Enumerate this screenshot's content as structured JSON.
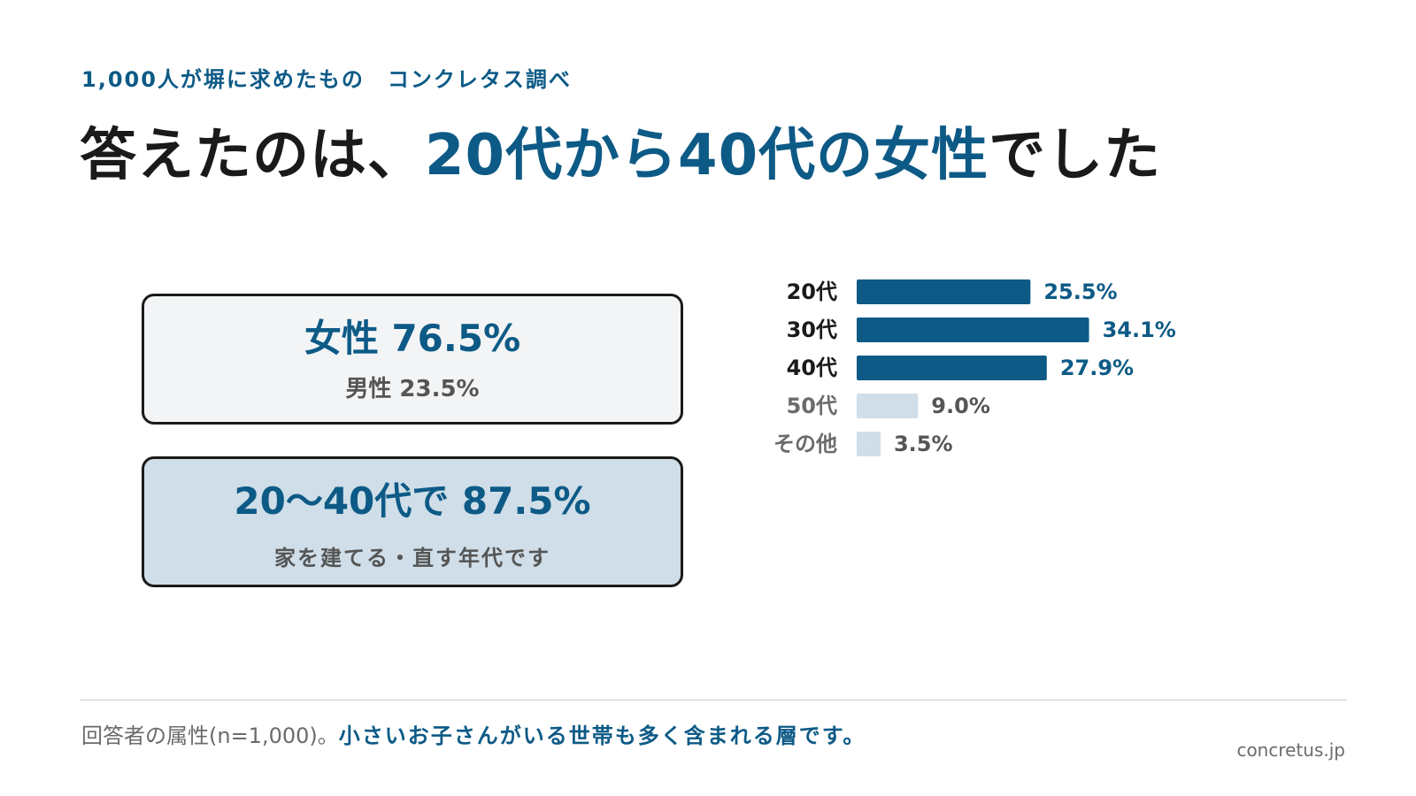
{
  "header": {
    "subtitle": "1,000人が塀に求めたもの　コンクレタス調べ",
    "title_prefix": "答えたのは、",
    "title_highlight": "20代から40代の女性",
    "title_suffix": "でした"
  },
  "cards": {
    "gender_main": "女性 76.5%",
    "gender_sub": "男性 23.5%",
    "age_main": "20〜40代で 87.5%",
    "age_sub": "家を建てる・直す年代です"
  },
  "chart_data": {
    "type": "bar",
    "orientation": "horizontal",
    "categories": [
      "20代",
      "30代",
      "40代",
      "50代",
      "その他"
    ],
    "values": [
      25.5,
      34.1,
      27.9,
      9.0,
      3.5
    ],
    "value_labels": [
      "25.5%",
      "34.1%",
      "27.9%",
      "9.0%",
      "3.5%"
    ],
    "highlighted": [
      true,
      true,
      true,
      false,
      false
    ],
    "colors": {
      "highlight": "#0d5a86",
      "muted": "#cfdee8",
      "label_highlight": "#1a1a1a",
      "label_muted": "#6b6b6b",
      "value_highlight": "#0d5a86",
      "value_muted": "#555555"
    },
    "grid": false,
    "legend": "none"
  },
  "footer": {
    "note_plain": "回答者の属性(n=1,000)。",
    "note_emphasis": "小さいお子さんがいる世帯も多く含まれる層です。",
    "site": "concretus.jp"
  }
}
